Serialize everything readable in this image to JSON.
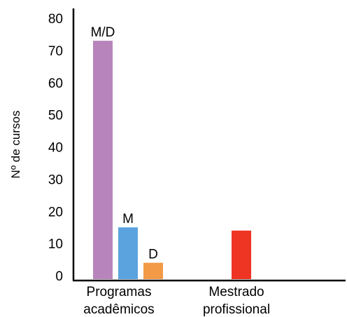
{
  "chart_data": {
    "type": "bar",
    "ylabel": "Nº de cursos",
    "ylim": [
      0,
      80
    ],
    "yticks": [
      0,
      10,
      20,
      30,
      40,
      50,
      60,
      70,
      80
    ],
    "grid": false,
    "groups": [
      {
        "label_lines": [
          "Programas",
          "acadêmicos"
        ],
        "bars": [
          {
            "label": "M/D",
            "value": 73,
            "color": "#b784bb"
          },
          {
            "label": "M",
            "value": 15,
            "color": "#5aa3de"
          },
          {
            "label": "D",
            "value": 4,
            "color": "#f29a46"
          }
        ]
      },
      {
        "label_lines": [
          "Mestrado",
          "profissional"
        ],
        "bars": [
          {
            "label": "",
            "value": 14,
            "color": "#ee3524"
          }
        ]
      }
    ]
  }
}
